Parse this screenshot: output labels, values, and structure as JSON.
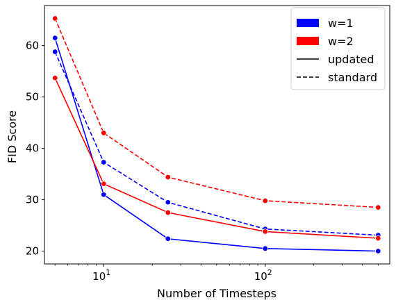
{
  "chart_data": {
    "type": "line",
    "xscale": "log",
    "xlabel": "Number of Timesteps",
    "ylabel": "FID Score",
    "xlim": [
      4.3,
      590
    ],
    "ylim": [
      17.5,
      67.8
    ],
    "xticks": [
      {
        "value": 10,
        "base": "10",
        "exp": "1"
      },
      {
        "value": 100,
        "base": "10",
        "exp": "2"
      }
    ],
    "yticks": [
      20,
      30,
      40,
      50,
      60
    ],
    "grid": false,
    "legend_position": "top-right",
    "legend": [
      {
        "label": "w=1",
        "kind": "patch",
        "color": "#0000ff"
      },
      {
        "label": "w=2",
        "kind": "patch",
        "color": "#ff0000"
      },
      {
        "label": "updated",
        "kind": "line",
        "dash": "solid"
      },
      {
        "label": "standard",
        "kind": "line",
        "dash": "dashed"
      }
    ],
    "series": [
      {
        "w": "w=1",
        "variant": "updated",
        "color": "#0000ff",
        "dashed": false,
        "x": [
          5,
          10,
          25,
          100,
          500
        ],
        "y": [
          61.5,
          31.0,
          22.4,
          20.5,
          20.0
        ]
      },
      {
        "w": "w=1",
        "variant": "standard",
        "color": "#0000ff",
        "dashed": true,
        "x": [
          5,
          10,
          25,
          100,
          500
        ],
        "y": [
          58.8,
          37.3,
          29.5,
          24.3,
          23.1
        ]
      },
      {
        "w": "w=2",
        "variant": "updated",
        "color": "#ff0000",
        "dashed": false,
        "x": [
          5,
          10,
          25,
          100,
          500
        ],
        "y": [
          53.7,
          33.1,
          27.5,
          23.8,
          22.5
        ]
      },
      {
        "w": "w=2",
        "variant": "standard",
        "color": "#ff0000",
        "dashed": true,
        "x": [
          5,
          10,
          25,
          100,
          500
        ],
        "y": [
          65.3,
          43.0,
          34.4,
          29.8,
          28.5
        ]
      }
    ]
  }
}
